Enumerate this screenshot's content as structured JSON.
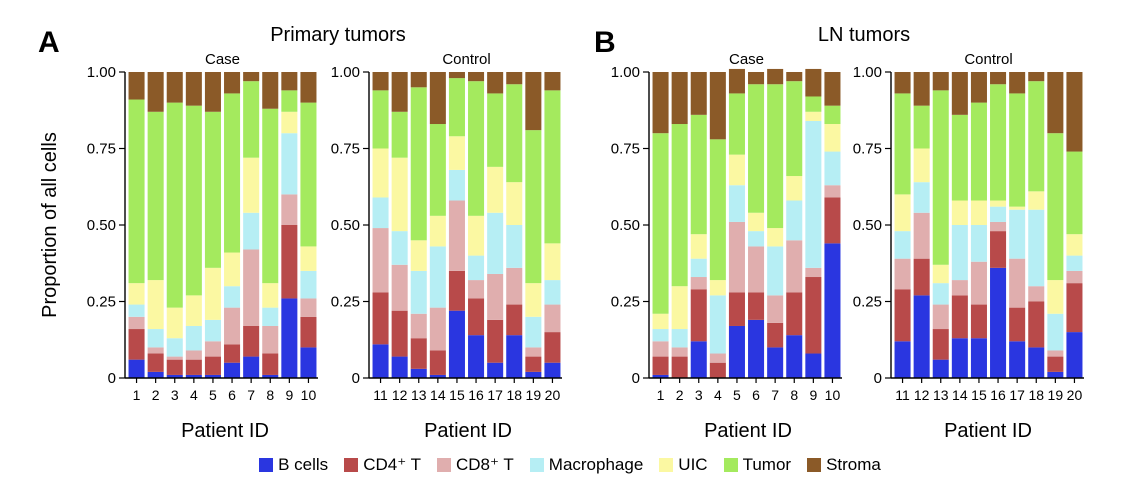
{
  "colors": {
    "B cells": "#2a36e0",
    "CD4+ T": "#b84a4a",
    "CD8+ T": "#e0aeae",
    "Macrophage": "#b6eef4",
    "UIC": "#fbf8a2",
    "Tumor": "#a4ea5e",
    "Stroma": "#8b5a28"
  },
  "legend": [
    {
      "key": "B cells",
      "text": "B cells"
    },
    {
      "key": "CD4+ T",
      "text": "CD4⁺ T"
    },
    {
      "key": "CD8+ T",
      "text": "CD8⁺ T"
    },
    {
      "key": "Macrophage",
      "text": "Macrophage"
    },
    {
      "key": "UIC",
      "text": "UIC"
    },
    {
      "key": "Tumor",
      "text": "Tumor"
    },
    {
      "key": "Stroma",
      "text": "Stroma"
    }
  ],
  "y_label": "Proportion of all cells",
  "chart_data": [
    {
      "type": "bar",
      "stacked": true,
      "panel": "A",
      "title": "Primary tumors",
      "subtitle": "Case",
      "xlabel": "Patient ID",
      "ylabel": "Proportion of all cells",
      "ylim": [
        0,
        1
      ],
      "yticks": [
        "0",
        "0.25",
        "0.50",
        "0.75",
        "1.00"
      ],
      "categories": [
        "1",
        "2",
        "3",
        "4",
        "5",
        "6",
        "7",
        "8",
        "9",
        "10"
      ],
      "series": [
        {
          "name": "B cells",
          "values": [
            0.06,
            0.02,
            0.01,
            0.01,
            0.01,
            0.05,
            0.07,
            0.01,
            0.26,
            0.1
          ]
        },
        {
          "name": "CD4+ T",
          "values": [
            0.1,
            0.06,
            0.05,
            0.05,
            0.06,
            0.06,
            0.1,
            0.07,
            0.24,
            0.1
          ]
        },
        {
          "name": "CD8+ T",
          "values": [
            0.04,
            0.02,
            0.01,
            0.03,
            0.05,
            0.12,
            0.25,
            0.09,
            0.1,
            0.06
          ]
        },
        {
          "name": "Macrophage",
          "values": [
            0.04,
            0.06,
            0.06,
            0.08,
            0.07,
            0.07,
            0.12,
            0.06,
            0.2,
            0.09
          ]
        },
        {
          "name": "UIC",
          "values": [
            0.07,
            0.16,
            0.1,
            0.1,
            0.17,
            0.11,
            0.18,
            0.08,
            0.07,
            0.08
          ]
        },
        {
          "name": "Tumor",
          "values": [
            0.6,
            0.55,
            0.67,
            0.62,
            0.51,
            0.52,
            0.25,
            0.57,
            0.07,
            0.47
          ]
        },
        {
          "name": "Stroma",
          "values": [
            0.09,
            0.13,
            0.1,
            0.11,
            0.13,
            0.07,
            0.03,
            0.12,
            0.06,
            0.1
          ]
        }
      ]
    },
    {
      "type": "bar",
      "stacked": true,
      "panel": "A",
      "title": "Primary tumors",
      "subtitle": "Control",
      "xlabel": "Patient ID",
      "ylim": [
        0,
        1
      ],
      "yticks": [
        "0",
        "0.25",
        "0.50",
        "0.75",
        "1.00"
      ],
      "categories": [
        "11",
        "12",
        "13",
        "14",
        "15",
        "16",
        "17",
        "18",
        "19",
        "20"
      ],
      "series": [
        {
          "name": "B cells",
          "values": [
            0.11,
            0.07,
            0.03,
            0.01,
            0.22,
            0.14,
            0.05,
            0.14,
            0.02,
            0.05
          ]
        },
        {
          "name": "CD4+ T",
          "values": [
            0.17,
            0.15,
            0.1,
            0.08,
            0.13,
            0.12,
            0.14,
            0.1,
            0.05,
            0.1
          ]
        },
        {
          "name": "CD8+ T",
          "values": [
            0.21,
            0.15,
            0.08,
            0.14,
            0.23,
            0.06,
            0.15,
            0.12,
            0.03,
            0.09
          ]
        },
        {
          "name": "Macrophage",
          "values": [
            0.1,
            0.11,
            0.14,
            0.2,
            0.1,
            0.08,
            0.2,
            0.14,
            0.1,
            0.08
          ]
        },
        {
          "name": "UIC",
          "values": [
            0.16,
            0.24,
            0.1,
            0.1,
            0.11,
            0.13,
            0.15,
            0.14,
            0.11,
            0.12
          ]
        },
        {
          "name": "Tumor",
          "values": [
            0.19,
            0.15,
            0.5,
            0.3,
            0.19,
            0.44,
            0.24,
            0.32,
            0.5,
            0.5
          ]
        },
        {
          "name": "Stroma",
          "values": [
            0.06,
            0.13,
            0.05,
            0.17,
            0.02,
            0.03,
            0.07,
            0.04,
            0.19,
            0.06
          ]
        }
      ]
    },
    {
      "type": "bar",
      "stacked": true,
      "panel": "B",
      "title": "LN tumors",
      "subtitle": "Case",
      "xlabel": "Patient ID",
      "ylim": [
        0,
        1
      ],
      "yticks": [
        "0",
        "0.25",
        "0.50",
        "0.75",
        "1.00"
      ],
      "categories": [
        "1",
        "2",
        "3",
        "4",
        "5",
        "6",
        "7",
        "8",
        "9",
        "10"
      ],
      "series": [
        {
          "name": "B cells",
          "values": [
            0.01,
            0.0,
            0.12,
            0.0,
            0.17,
            0.19,
            0.1,
            0.14,
            0.08,
            0.44
          ]
        },
        {
          "name": "CD4+ T",
          "values": [
            0.06,
            0.07,
            0.17,
            0.05,
            0.11,
            0.09,
            0.08,
            0.14,
            0.25,
            0.15
          ]
        },
        {
          "name": "CD8+ T",
          "values": [
            0.05,
            0.03,
            0.04,
            0.03,
            0.23,
            0.15,
            0.09,
            0.17,
            0.03,
            0.04
          ]
        },
        {
          "name": "Macrophage",
          "values": [
            0.04,
            0.06,
            0.06,
            0.19,
            0.12,
            0.05,
            0.16,
            0.13,
            0.48,
            0.11
          ]
        },
        {
          "name": "UIC",
          "values": [
            0.05,
            0.14,
            0.08,
            0.05,
            0.1,
            0.06,
            0.06,
            0.08,
            0.03,
            0.09
          ]
        },
        {
          "name": "Tumor",
          "values": [
            0.59,
            0.53,
            0.39,
            0.46,
            0.2,
            0.42,
            0.47,
            0.31,
            0.05,
            0.06
          ]
        },
        {
          "name": "Stroma",
          "values": [
            0.2,
            0.17,
            0.14,
            0.22,
            0.08,
            0.04,
            0.05,
            0.03,
            0.09,
            0.11
          ]
        }
      ]
    },
    {
      "type": "bar",
      "stacked": true,
      "panel": "B",
      "title": "LN tumors",
      "subtitle": "Control",
      "xlabel": "Patient ID",
      "ylim": [
        0,
        1
      ],
      "yticks": [
        "0",
        "0.25",
        "0.50",
        "0.75",
        "1.00"
      ],
      "categories": [
        "11",
        "12",
        "13",
        "14",
        "15",
        "16",
        "17",
        "18",
        "19",
        "20"
      ],
      "series": [
        {
          "name": "B cells",
          "values": [
            0.12,
            0.27,
            0.06,
            0.13,
            0.13,
            0.36,
            0.12,
            0.1,
            0.02,
            0.15
          ]
        },
        {
          "name": "CD4+ T",
          "values": [
            0.17,
            0.12,
            0.1,
            0.14,
            0.11,
            0.12,
            0.11,
            0.15,
            0.05,
            0.16
          ]
        },
        {
          "name": "CD8+ T",
          "values": [
            0.1,
            0.15,
            0.08,
            0.05,
            0.14,
            0.03,
            0.16,
            0.05,
            0.02,
            0.04
          ]
        },
        {
          "name": "Macrophage",
          "values": [
            0.09,
            0.1,
            0.07,
            0.18,
            0.12,
            0.05,
            0.16,
            0.25,
            0.12,
            0.05
          ]
        },
        {
          "name": "UIC",
          "values": [
            0.12,
            0.11,
            0.06,
            0.08,
            0.08,
            0.02,
            0.01,
            0.06,
            0.11,
            0.07
          ]
        },
        {
          "name": "Tumor",
          "values": [
            0.33,
            0.14,
            0.57,
            0.28,
            0.32,
            0.38,
            0.37,
            0.36,
            0.48,
            0.27
          ]
        },
        {
          "name": "Stroma",
          "values": [
            0.07,
            0.11,
            0.06,
            0.14,
            0.1,
            0.04,
            0.07,
            0.03,
            0.2,
            0.26
          ]
        }
      ]
    }
  ]
}
